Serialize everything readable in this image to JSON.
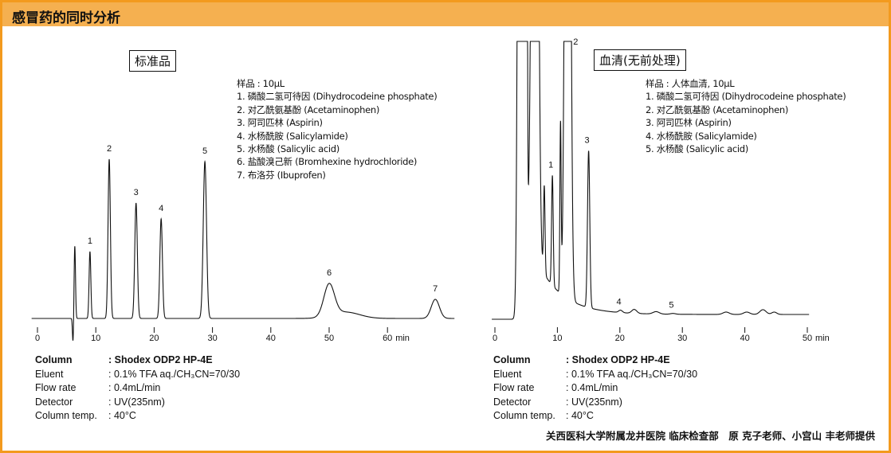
{
  "header": {
    "title": "感冒药的同时分析"
  },
  "colors": {
    "frame": "#F39A1E",
    "header_bg": "#F5B050",
    "trace": "#111111"
  },
  "left": {
    "box_title": "标准品",
    "legend": [
      "样品 : 10μL",
      "1. 磷酸二氢可待因 (Dihydrocodeine phosphate)",
      "2. 对乙酰氨基酚 (Acetaminophen)",
      "3. 阿司匹林 (Aspirin)",
      "4. 水杨酰胺 (Salicylamide)",
      "5. 水杨酸 (Salicylic acid)",
      "6. 盐酸溴己新 (Bromhexine hydrochloride)",
      "7. 布洛芬 (Ibuprofen)"
    ],
    "params": [
      {
        "key": "Column",
        "value": ": Shodex ODP2 HP-4E",
        "bold": true
      },
      {
        "key": "Eluent",
        "value": ": 0.1% TFA aq./CH₃CN=70/30",
        "bold": false
      },
      {
        "key": "Flow rate",
        "value": ": 0.4mL/min",
        "bold": false
      },
      {
        "key": "Detector",
        "value": ": UV(235nm)",
        "bold": false
      },
      {
        "key": "Column temp.",
        "value": ": 40°C",
        "bold": false
      }
    ]
  },
  "right": {
    "box_title": "血清(无前处理)",
    "legend": [
      "样品 : 人体血清, 10μL",
      "1. 磷酸二氢可待因 (Dihydrocodeine phosphate)",
      "2. 对乙酰氨基酚 (Acetaminophen)",
      "3. 阿司匹林 (Aspirin)",
      "4. 水杨酰胺 (Salicylamide)",
      "5. 水杨酸 (Salicylic acid)"
    ],
    "params": [
      {
        "key": "Column",
        "value": ": Shodex ODP2 HP-4E",
        "bold": true
      },
      {
        "key": "Eluent",
        "value": ": 0.1% TFA aq./CH₃CN=70/30",
        "bold": false
      },
      {
        "key": "Flow rate",
        "value": ": 0.4mL/min",
        "bold": false
      },
      {
        "key": "Detector",
        "value": ": UV(235nm)",
        "bold": false
      },
      {
        "key": "Column temp.",
        "value": ": 40°C",
        "bold": false
      }
    ]
  },
  "credit": "关西医科大学附属龙井医院 临床检查部　原 克子老师、小宫山 丰老师提供",
  "chart_data": [
    {
      "type": "line",
      "title": "标准品",
      "xlabel": "min",
      "x_ticks": [
        0,
        10,
        20,
        30,
        40,
        50,
        60
      ],
      "xlim": [
        -1,
        71.5
      ],
      "ylim": [
        -35,
        210
      ],
      "grid": false,
      "peaks": [
        {
          "label": "",
          "t": 6.4,
          "height": 91,
          "sigma": 0.12
        },
        {
          "label": "",
          "t": 6.1,
          "height": -31,
          "sigma": 0.1
        },
        {
          "label": "1",
          "t": 9.0,
          "height": 84,
          "sigma": 0.15
        },
        {
          "label": "2",
          "t": 12.3,
          "height": 200,
          "sigma": 0.2
        },
        {
          "label": "3",
          "t": 16.9,
          "height": 145,
          "sigma": 0.22
        },
        {
          "label": "4",
          "t": 21.2,
          "height": 125,
          "sigma": 0.22
        },
        {
          "label": "5",
          "t": 28.7,
          "height": 197,
          "sigma": 0.28
        },
        {
          "label": "6",
          "t": 50.0,
          "height": 40,
          "sigma": 0.9
        },
        {
          "label": "",
          "t": 52.8,
          "height": 8,
          "sigma": 2.4
        },
        {
          "label": "7",
          "t": 68.2,
          "height": 24,
          "sigma": 0.7
        }
      ]
    },
    {
      "type": "line",
      "title": "血清(无前处理)",
      "xlabel": "min",
      "x_ticks": [
        0,
        10,
        20,
        30,
        40,
        50
      ],
      "xlim": [
        -0.5,
        50.3
      ],
      "ylim": [
        0,
        349
      ],
      "grid": false,
      "peaks": [
        {
          "label": "",
          "t": 4.1,
          "height": 2000,
          "sigma": 0.3
        },
        {
          "label": "",
          "t": 5.0,
          "height": 1500,
          "sigma": 0.12
        },
        {
          "label": "",
          "t": 6.4,
          "height": 1500,
          "sigma": 0.4
        },
        {
          "label": "",
          "t": 7.9,
          "height": 110,
          "sigma": 0.12
        },
        {
          "label": "1",
          "t": 9.2,
          "height": 138,
          "sigma": 0.13
        },
        {
          "label": "",
          "t": 10.5,
          "height": 210,
          "sigma": 0.1
        },
        {
          "label": "2",
          "t": 11.65,
          "height": 1500,
          "sigma": 0.35
        },
        {
          "label": "3",
          "t": 15.0,
          "height": 197,
          "sigma": 0.18
        },
        {
          "label": "4",
          "t": 20.1,
          "height": 3,
          "sigma": 0.3
        },
        {
          "label": "",
          "t": 22.3,
          "height": 5,
          "sigma": 0.4
        },
        {
          "label": "",
          "t": 25.8,
          "height": 3,
          "sigma": 0.5
        },
        {
          "label": "5",
          "t": 28.5,
          "height": 1,
          "sigma": 0.4
        },
        {
          "label": "",
          "t": 37.0,
          "height": 3,
          "sigma": 0.5
        },
        {
          "label": "",
          "t": 40.3,
          "height": 3,
          "sigma": 0.5
        },
        {
          "label": "",
          "t": 42.9,
          "height": 6,
          "sigma": 0.5
        },
        {
          "label": "",
          "t": 44.7,
          "height": 3,
          "sigma": 0.4
        }
      ]
    }
  ]
}
